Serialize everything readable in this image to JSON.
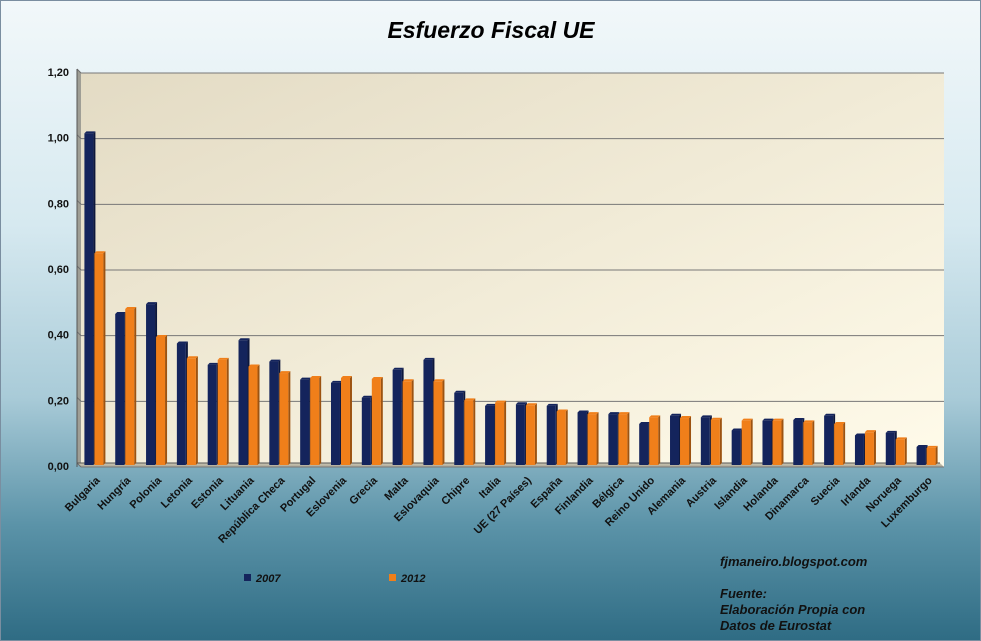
{
  "chart_data": {
    "type": "bar",
    "title": "Esfuerzo Fiscal UE",
    "xlabel": "",
    "ylabel": "",
    "ylim": [
      0,
      1.2
    ],
    "yticks": [
      "0,00",
      "0,20",
      "0,40",
      "0,60",
      "0,80",
      "1,00",
      "1,20"
    ],
    "ytick_values": [
      0,
      0.2,
      0.4,
      0.6,
      0.8,
      1.0,
      1.2
    ],
    "grid": true,
    "categories": [
      "Bulgaria",
      "Hungría",
      "Polonia",
      "Letonia",
      "Estonia",
      "Lituania",
      "República Checa",
      "Portugal",
      "Eslovenia",
      "Grecia",
      "Malta",
      "Eslovaquia",
      "Chipre",
      "Italia",
      "UE (27 Países)",
      "España",
      "Finlandia",
      "Bélgica",
      "Reino Unido",
      "Alemania",
      "Austria",
      "Islandia",
      "Holanda",
      "Dinamarca",
      "Suecia",
      "Irlanda",
      "Noruega",
      "Luxemburgo"
    ],
    "series": [
      {
        "name": "2007",
        "color": "#14245c",
        "values": [
          1.01,
          0.46,
          0.49,
          0.37,
          0.305,
          0.38,
          0.315,
          0.26,
          0.25,
          0.205,
          0.29,
          0.32,
          0.22,
          0.18,
          0.185,
          0.18,
          0.16,
          0.155,
          0.125,
          0.15,
          0.145,
          0.105,
          0.135,
          0.137,
          0.15,
          0.09,
          0.098,
          0.055
        ]
      },
      {
        "name": "2012",
        "color": "#f07f1a",
        "values": [
          0.645,
          0.475,
          0.39,
          0.325,
          0.32,
          0.3,
          0.28,
          0.265,
          0.265,
          0.262,
          0.255,
          0.255,
          0.197,
          0.19,
          0.182,
          0.163,
          0.155,
          0.155,
          0.145,
          0.143,
          0.138,
          0.135,
          0.135,
          0.13,
          0.125,
          0.1,
          0.078,
          0.052
        ]
      }
    ],
    "legend": "bottom-left",
    "annotations": {
      "blog": "fjmaneiro.blogspot.com",
      "source_lines": [
        "Fuente:",
        "Elaboración Propia con",
        "Datos de Eurostat"
      ]
    }
  }
}
